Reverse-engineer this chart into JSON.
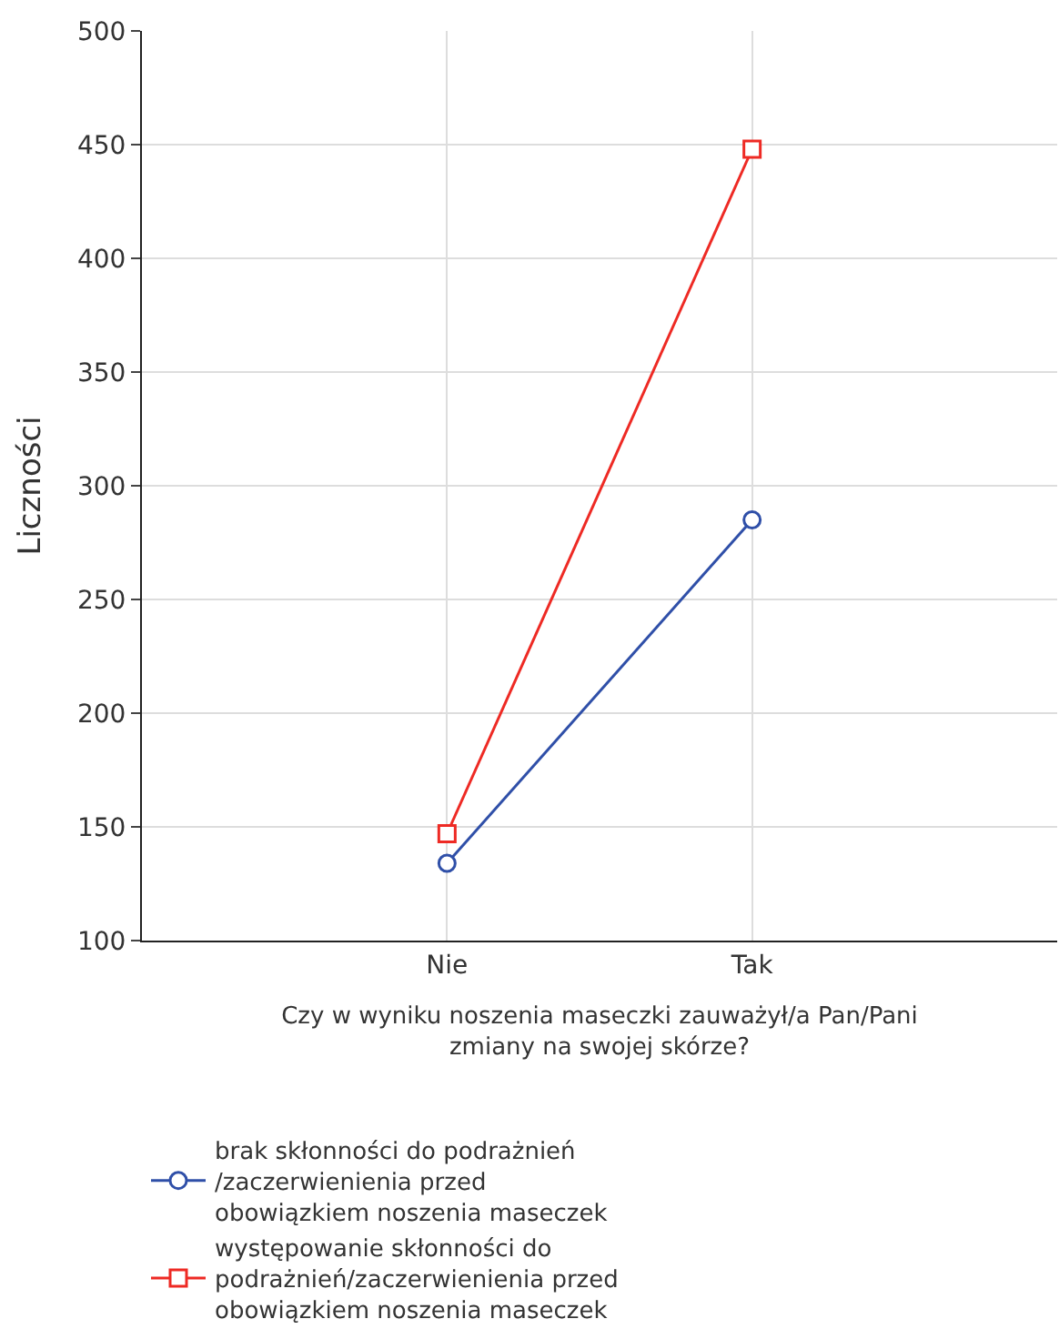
{
  "chart_data": {
    "type": "line",
    "xlabel": "Czy w wyniku noszenia maseczki zauważył/a Pan/Pani\nzmiany na swojej skórze?",
    "ylabel": "Liczności",
    "categories": [
      "Nie",
      "Tak"
    ],
    "series": [
      {
        "name": "brak skłonności do podrażnień\n/zaczerwienienia przed\nobowiązkiem noszenia maseczek",
        "color": "#2f4fa8",
        "marker": "circle",
        "values": [
          134,
          285
        ]
      },
      {
        "name": "występowanie skłonności do\npodrażnień/zaczerwienienia przed\nobowiązkiem noszenia maseczek",
        "color": "#ee2a24",
        "marker": "square",
        "values": [
          147,
          448
        ]
      }
    ],
    "ylim": [
      100,
      500
    ],
    "yticks": [
      100,
      150,
      200,
      250,
      300,
      350,
      400,
      450,
      500
    ],
    "grid": true,
    "legend": "bottom",
    "line_style": "solid"
  }
}
